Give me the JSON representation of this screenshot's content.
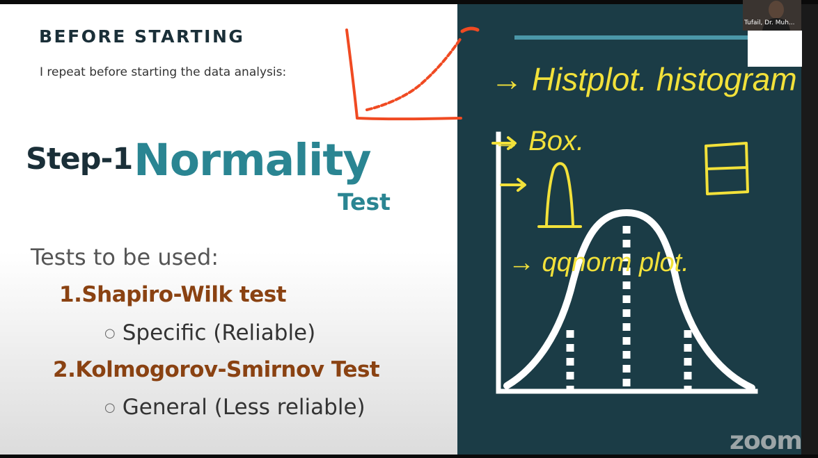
{
  "slide": {
    "header": "BEFORE STARTING",
    "subtitle": "I repeat before starting the data analysis:",
    "step_label": "Step-1",
    "step_title": "Normality",
    "step_subtitle": "Test",
    "tests_heading": "Tests to be used:",
    "tests": [
      {
        "number": "1.",
        "name": "Shapiro-Wilk test",
        "note": "Specific (Reliable)"
      },
      {
        "number": "2.",
        "name": "Kolmogorov-Smirnov Test",
        "note": "General (Less reliable)"
      }
    ]
  },
  "whiteboard": {
    "note1": "→ Histplot. histogram",
    "note2": "→ Box.",
    "note3": "→ qqnorm plot."
  },
  "participant": {
    "name": "Tufail, Dr. Muh..."
  },
  "brand": {
    "logo_text": "zoom"
  },
  "colors": {
    "slide_dark": "#1a2f38",
    "slide_teal": "#2a8592",
    "slide_brown": "#8a4212",
    "board_bg": "#1b3c46",
    "ink_yellow": "#f2e13a",
    "ink_red": "#f04a22"
  }
}
